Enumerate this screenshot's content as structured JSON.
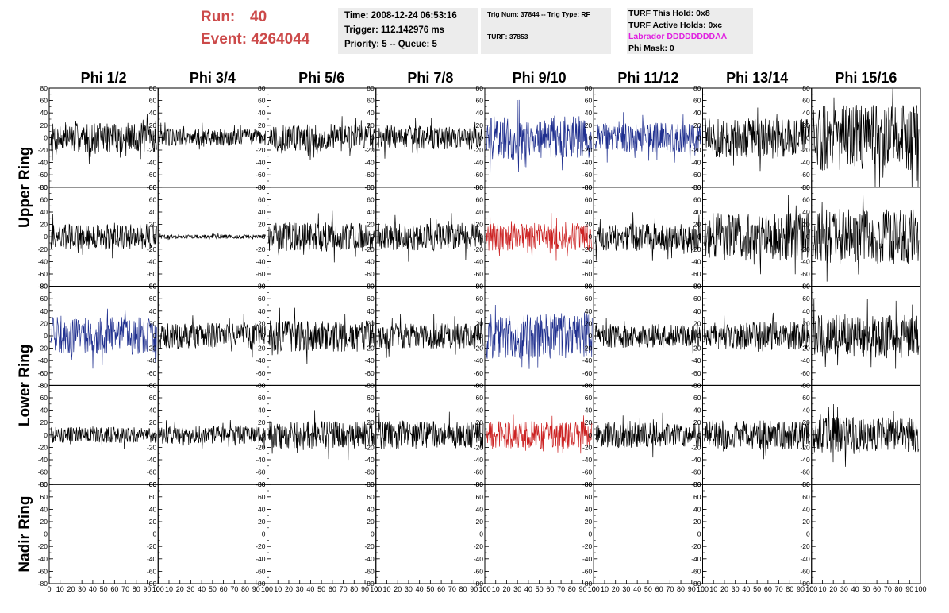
{
  "header": {
    "run_label": "Run:",
    "run_value": "40",
    "event_label": "Event:",
    "event_value": "4264044",
    "time": "Time: 2008-12-24 06:53:16",
    "trigger": "Trigger: 112.142976 ms",
    "priority": "Priority: 5 -- Queue: 5",
    "trig_num": "Trig Num: 37844 -- Trig Type: RF",
    "turf": "TURF: 37853",
    "turf_this_hold": "TURF This Hold: 0x8",
    "turf_active_holds": "TURF Active Holds: 0xc",
    "labrador": "Labrador DDDDDDDDAA",
    "phi_mask": "Phi Mask: 0"
  },
  "colors": {
    "default_trace": "#000000",
    "blue_trace": "#1f2f8f",
    "red_trace": "#cc2222",
    "header_red": "#cc4a4a",
    "labrador": "#e020e0",
    "info_bg": "#ececec"
  },
  "chart_data": {
    "type": "line",
    "column_headers": [
      "Phi 1/2",
      "Phi 3/4",
      "Phi 5/6",
      "Phi 7/8",
      "Phi 9/10",
      "Phi 11/12",
      "Phi 13/14",
      "Phi 15/16"
    ],
    "ring_labels": [
      "Upper Ring",
      "Lower Ring",
      "Nadir Ring"
    ],
    "ylim": [
      -80,
      80
    ],
    "y_ticks": [
      80,
      60,
      40,
      20,
      0,
      -20,
      -40,
      -60,
      -80
    ],
    "xlim": [
      0,
      100
    ],
    "x_ticks": [
      0,
      10,
      20,
      30,
      40,
      50,
      60,
      70,
      80,
      90,
      100
    ],
    "panel_rows": [
      [
        {
          "amp": 15,
          "color": "black"
        },
        {
          "amp": 9,
          "color": "black"
        },
        {
          "amp": 14,
          "color": "black"
        },
        {
          "amp": 12,
          "color": "black"
        },
        {
          "amp": 22,
          "color": "blue"
        },
        {
          "amp": 15,
          "color": "blue"
        },
        {
          "amp": 20,
          "color": "black"
        },
        {
          "amp": 33,
          "color": "black"
        }
      ],
      [
        {
          "amp": 13,
          "color": "black"
        },
        {
          "amp": 2,
          "color": "black"
        },
        {
          "amp": 15,
          "color": "black"
        },
        {
          "amp": 14,
          "color": "black"
        },
        {
          "amp": 14,
          "color": "red"
        },
        {
          "amp": 14,
          "color": "black"
        },
        {
          "amp": 24,
          "color": "black"
        },
        {
          "amp": 28,
          "color": "black"
        }
      ],
      [
        {
          "amp": 19,
          "color": "blue"
        },
        {
          "amp": 13,
          "color": "black"
        },
        {
          "amp": 16,
          "color": "black"
        },
        {
          "amp": 13,
          "color": "black"
        },
        {
          "amp": 23,
          "color": "blue"
        },
        {
          "amp": 12,
          "color": "black"
        },
        {
          "amp": 14,
          "color": "black"
        },
        {
          "amp": 21,
          "color": "black"
        }
      ],
      [
        {
          "amp": 8,
          "color": "black"
        },
        {
          "amp": 9,
          "color": "black"
        },
        {
          "amp": 14,
          "color": "black"
        },
        {
          "amp": 14,
          "color": "black"
        },
        {
          "amp": 14,
          "color": "red"
        },
        {
          "amp": 13,
          "color": "black"
        },
        {
          "amp": 15,
          "color": "black"
        },
        {
          "amp": 18,
          "color": "black"
        }
      ],
      [
        {
          "amp": 0,
          "color": "black"
        },
        {
          "amp": 0,
          "color": "black"
        },
        {
          "amp": 0,
          "color": "black"
        },
        {
          "amp": 0,
          "color": "black"
        },
        {
          "amp": 0,
          "color": "black"
        },
        {
          "amp": 0,
          "color": "black"
        },
        {
          "amp": 0,
          "color": "black"
        },
        {
          "amp": 0,
          "color": "black"
        }
      ]
    ]
  }
}
